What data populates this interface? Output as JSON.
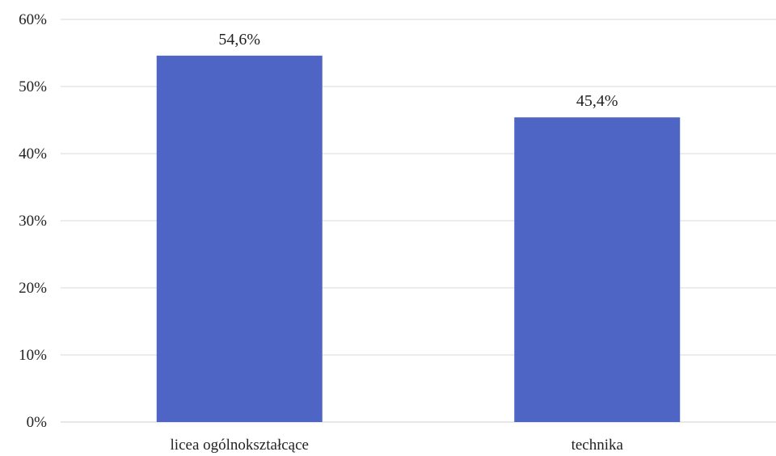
{
  "chart_data": {
    "type": "bar",
    "title": "",
    "xlabel": "",
    "ylabel": "",
    "categories": [
      "licea ogólnokształcące",
      "technika"
    ],
    "values": [
      54.6,
      45.4
    ],
    "value_labels": [
      "54,6%",
      "45,4%"
    ],
    "ylim": [
      0,
      60
    ],
    "yticks": [
      0,
      10,
      20,
      30,
      40,
      50,
      60
    ],
    "ytick_labels": [
      "0%",
      "10%",
      "20%",
      "30%",
      "40%",
      "50%",
      "60%"
    ],
    "grid": true,
    "legend": "none",
    "colors": {
      "bar": "#4F65C6",
      "grid": "#d9d9d9",
      "text": "#222222"
    }
  }
}
